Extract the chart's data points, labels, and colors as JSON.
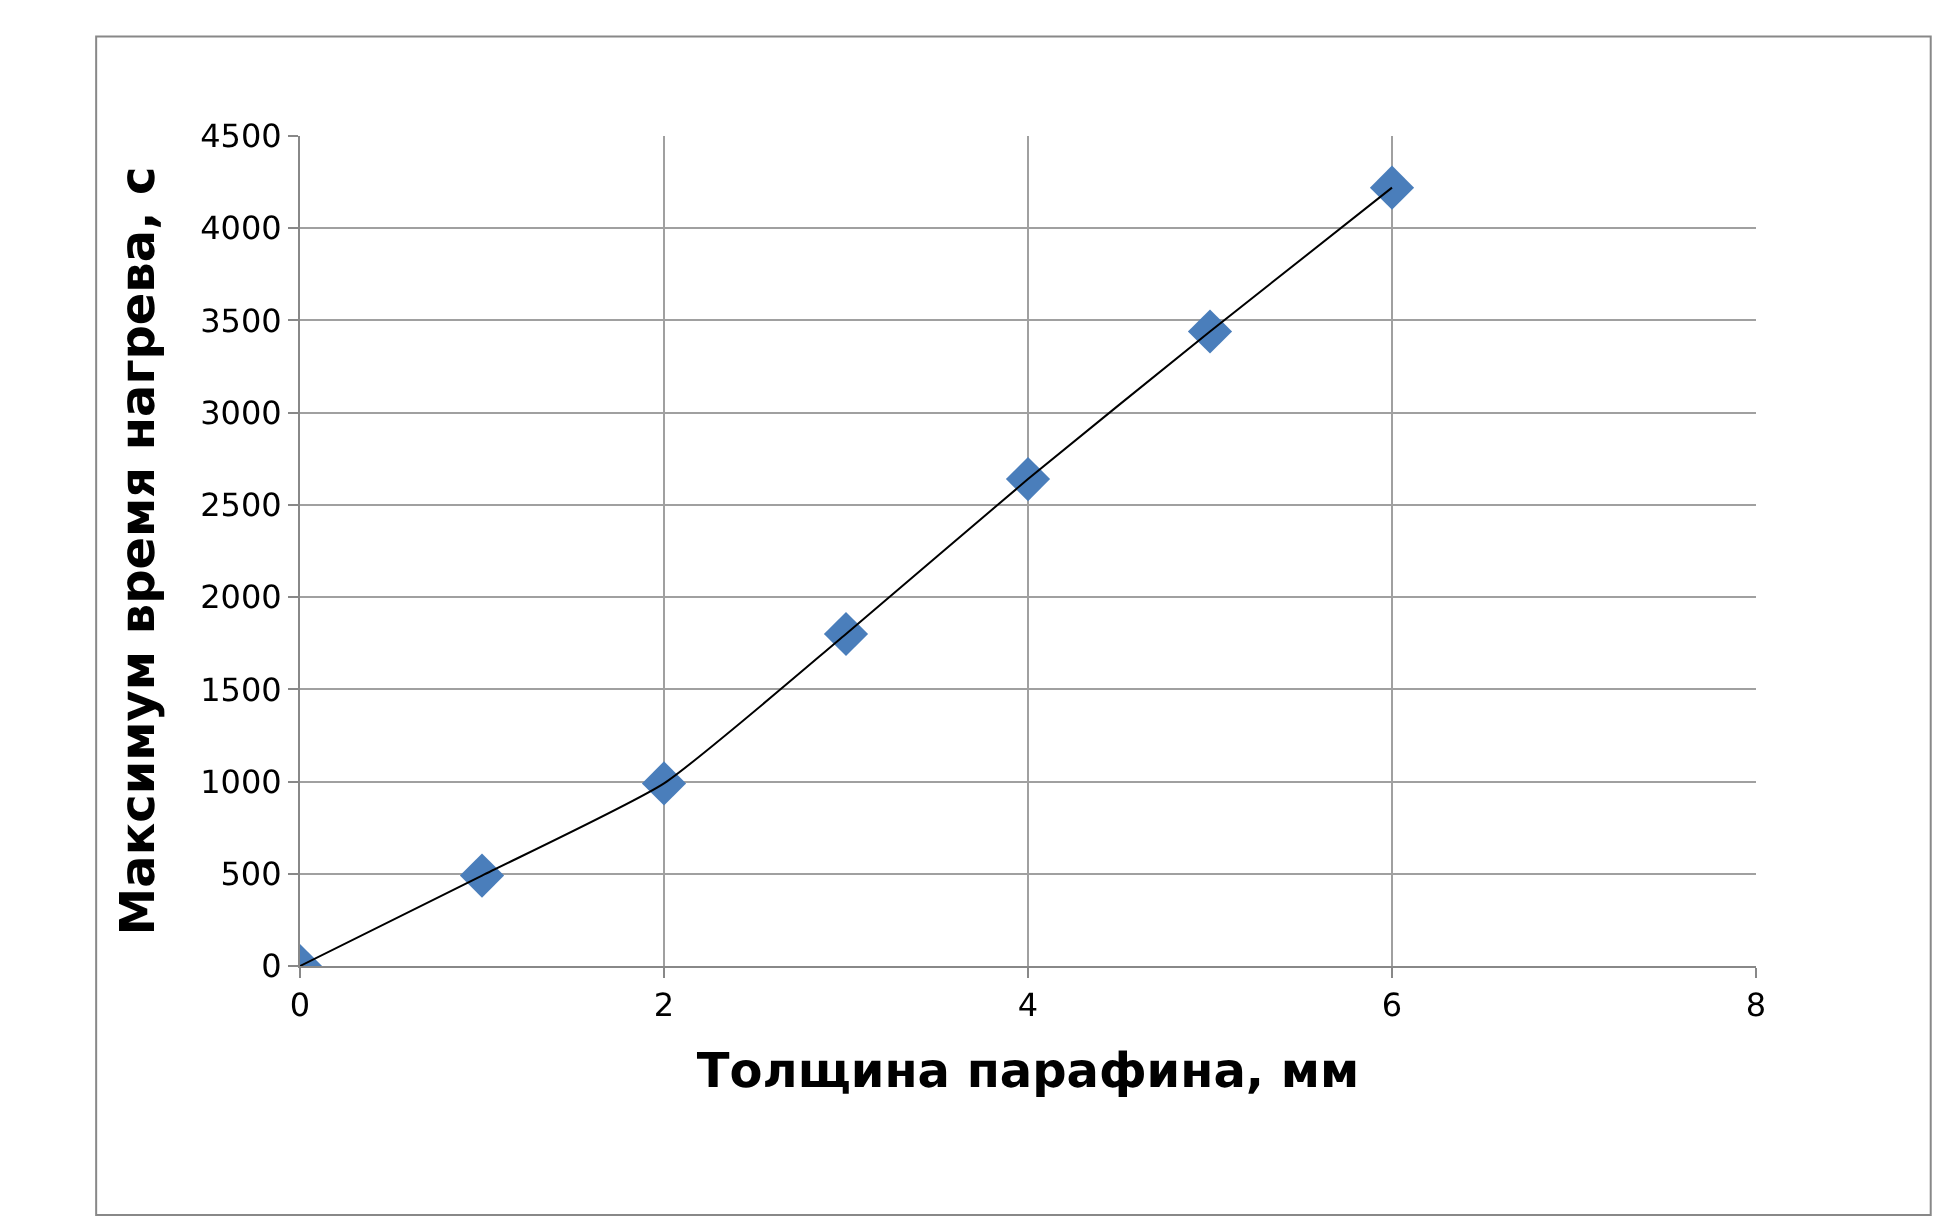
{
  "chart_data": {
    "type": "scatter",
    "xlabel": "Толщина парафина, мм",
    "ylabel": "Максимум время нагрева, с",
    "x": [
      0,
      1,
      2,
      3,
      4,
      5,
      6
    ],
    "series": [
      {
        "color": "#4a7ebb",
        "marker": "diamond",
        "values": [
          0,
          490,
          990,
          1800,
          2640,
          3440,
          4220
        ]
      },
      {
        "type": "line",
        "color": "#000000",
        "marker": "none",
        "values": [
          0,
          490,
          990,
          1800,
          2640,
          3440,
          4220
        ]
      }
    ],
    "xlim": [
      0,
      8
    ],
    "xticks": [
      0,
      2,
      4,
      6,
      8
    ],
    "ylim": [
      0,
      4500
    ],
    "yticks": [
      0,
      500,
      1000,
      1500,
      2000,
      2500,
      3000,
      3500,
      4000,
      4500
    ],
    "grid": true,
    "legend": false
  }
}
